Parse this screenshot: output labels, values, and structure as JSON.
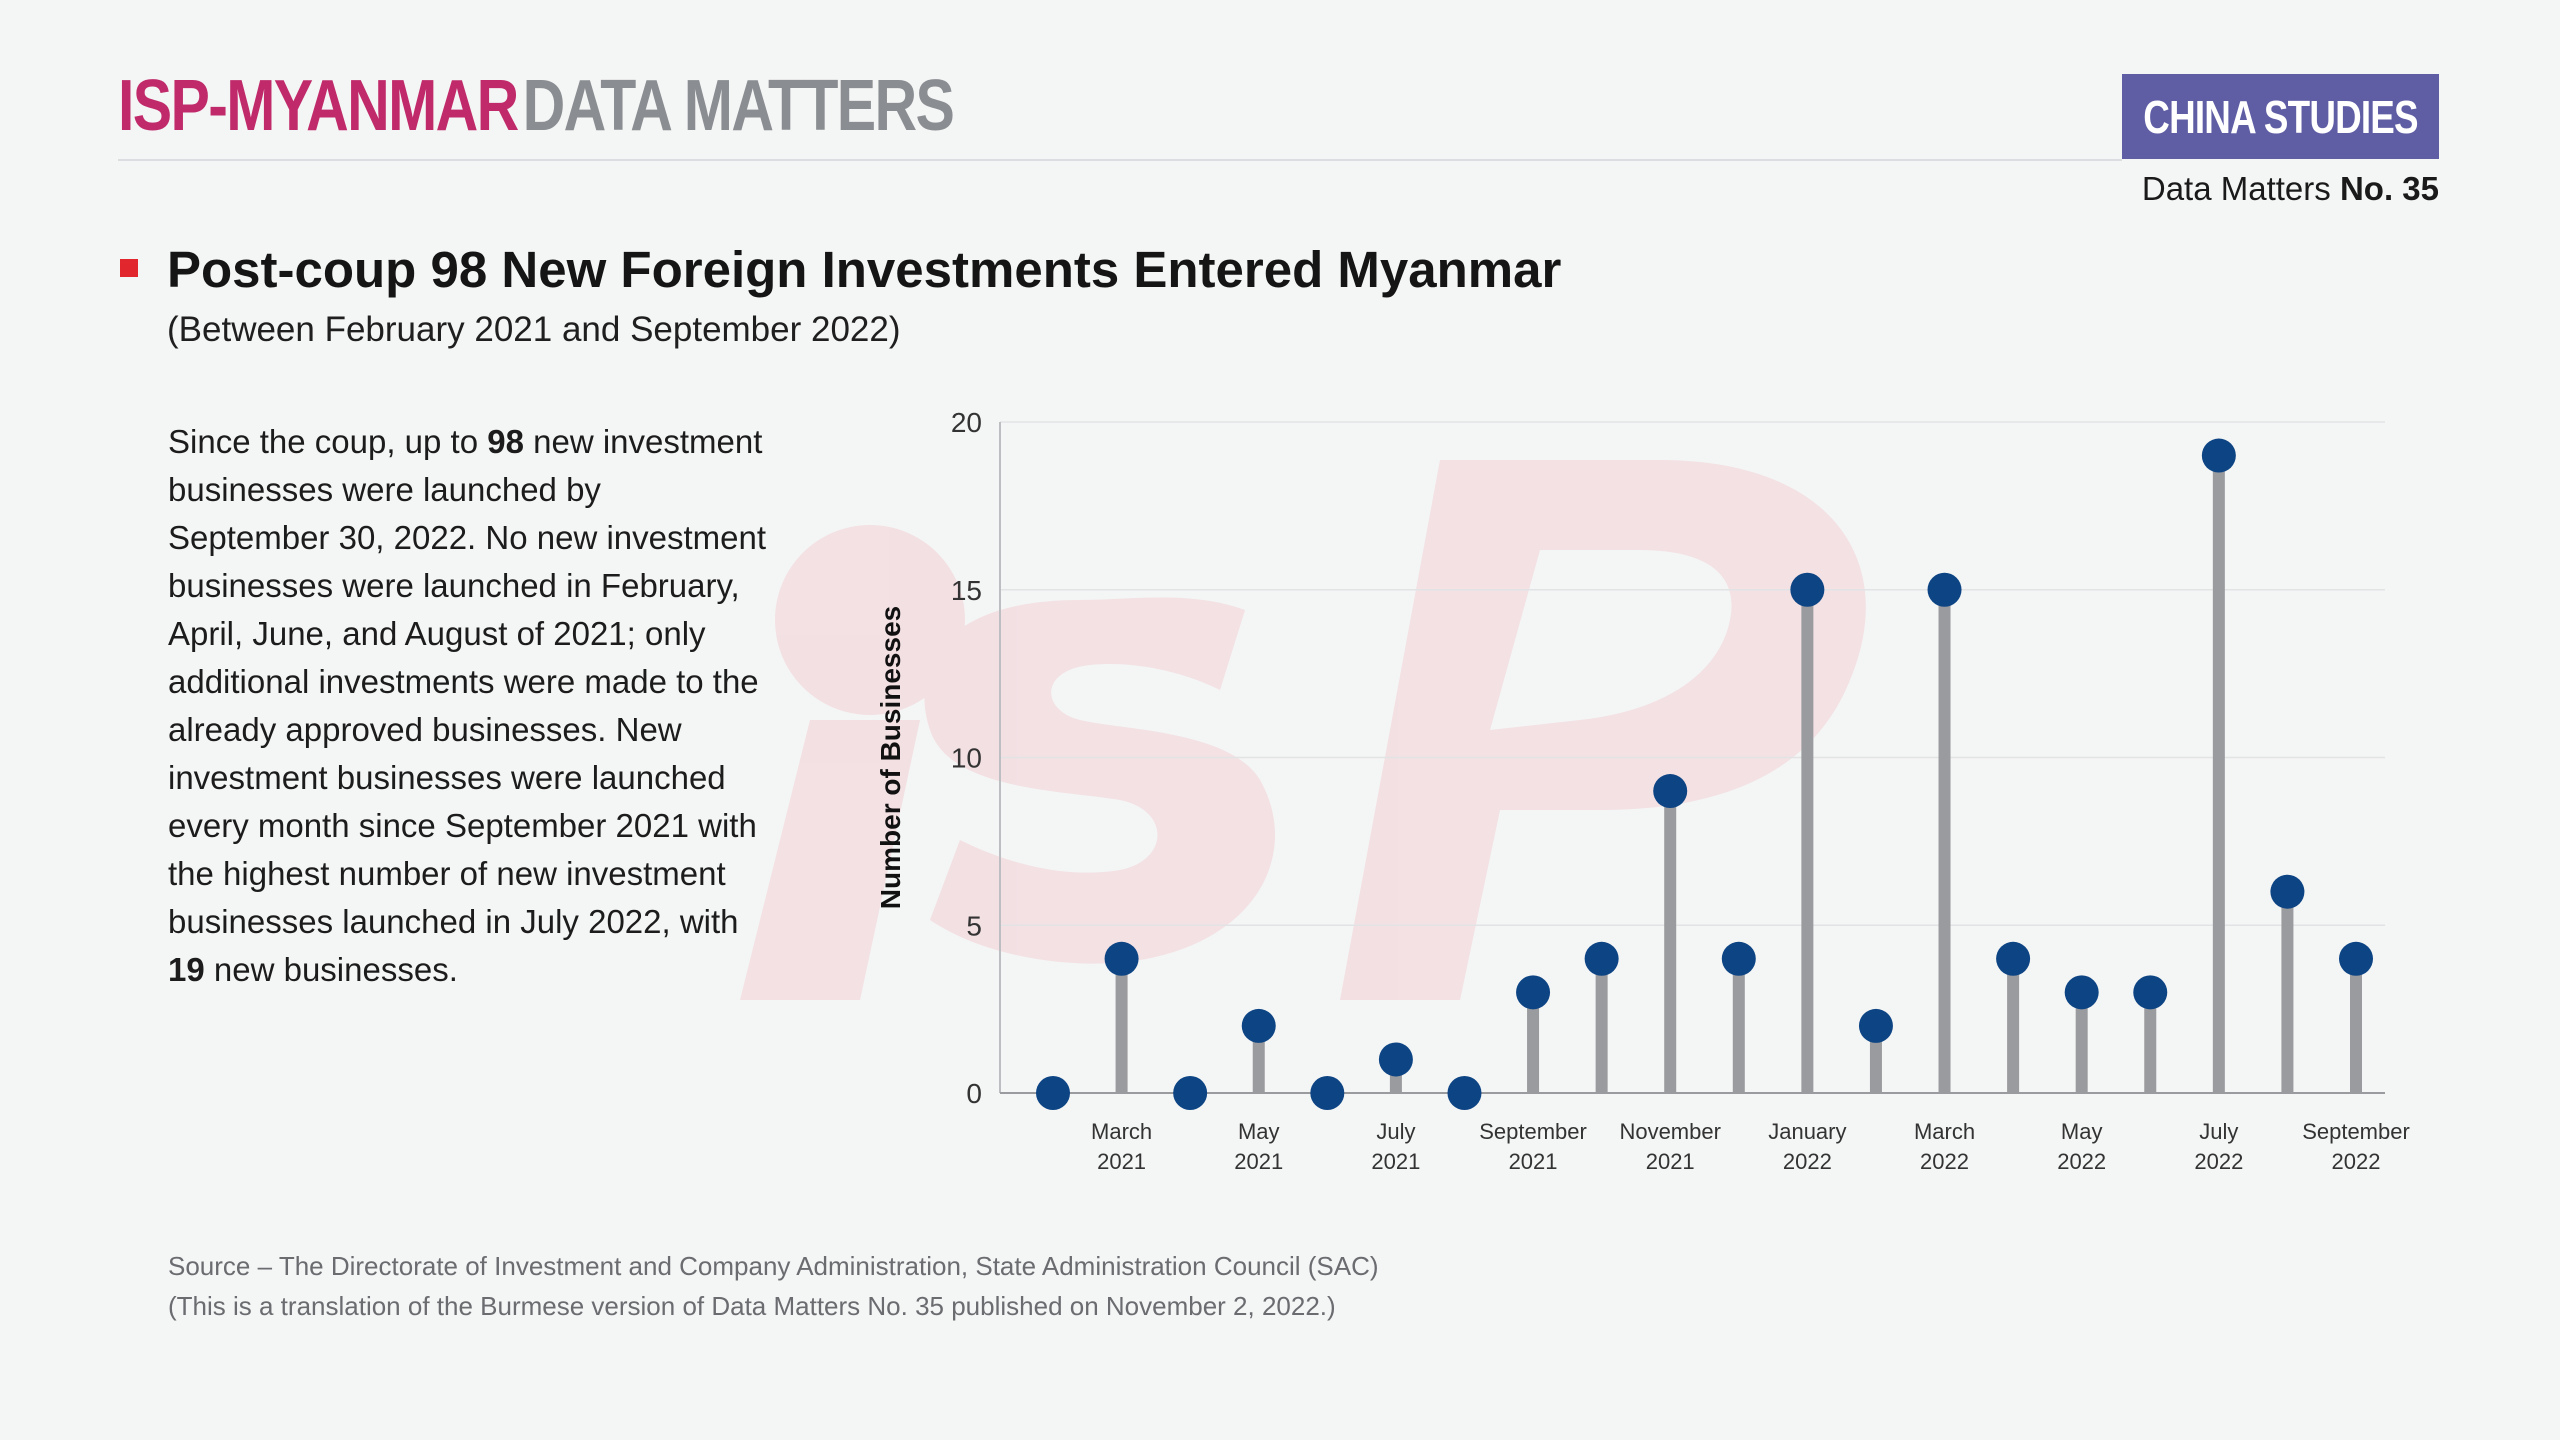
{
  "header": {
    "brand_primary": "ISP-MYANMAR",
    "brand_secondary": "DATA MATTERS",
    "badge": "CHINA STUDIES",
    "issue_prefix": "Data Matters",
    "issue_number": "No. 35"
  },
  "title": "Post-coup 98 New Foreign Investments Entered Myanmar",
  "subtitle": "(Between February 2021 and September 2022)",
  "description": {
    "p1": "Since the coup, up to ",
    "b1": "98",
    "p2": " new investment businesses were launched by September 30, 2022. No new investment businesses were launched in February, April, June, and August of 2021; only additional investments were made to the already approved businesses. New investment businesses were launched every month since September 2021 with the highest number of new investment businesses launched in July 2022, with ",
    "b2": "19",
    "p3": " new businesses."
  },
  "source": {
    "line1": "Source   –   The Directorate of Investment and Company Administration, State Administration Council (SAC)",
    "line2": "(This is a translation of the Burmese version of Data Matters No. 35 published on November 2, 2022.)"
  },
  "colors": {
    "accent": "#c02a6a",
    "badge": "#5f5ea5",
    "dot": "#0d4484",
    "stem": "#9a9b9e",
    "title_square": "#e1262d"
  },
  "chart_data": {
    "type": "lollipop",
    "title": "",
    "xlabel": "",
    "ylabel": "Number of Businesses",
    "ylim": [
      0,
      20
    ],
    "yticks": [
      0,
      5,
      10,
      15,
      20
    ],
    "grid": true,
    "categories": [
      "February 2021",
      "March 2021",
      "April 2021",
      "May 2021",
      "June 2021",
      "July 2021",
      "August 2021",
      "September 2021",
      "October 2021",
      "November 2021",
      "December 2021",
      "January 2022",
      "February 2022",
      "March 2022",
      "April 2022",
      "May 2022",
      "June 2022",
      "July 2022",
      "August 2022",
      "September 2022"
    ],
    "values": [
      0,
      4,
      0,
      2,
      0,
      1,
      0,
      3,
      4,
      9,
      4,
      15,
      2,
      15,
      4,
      3,
      3,
      19,
      6,
      4
    ],
    "tick_labels": [
      {
        "index": 1,
        "line1": "March",
        "line2": "2021"
      },
      {
        "index": 3,
        "line1": "May",
        "line2": "2021"
      },
      {
        "index": 5,
        "line1": "July",
        "line2": "2021"
      },
      {
        "index": 7,
        "line1": "September",
        "line2": "2021"
      },
      {
        "index": 9,
        "line1": "November",
        "line2": "2021"
      },
      {
        "index": 11,
        "line1": "January",
        "line2": "2022"
      },
      {
        "index": 13,
        "line1": "March",
        "line2": "2022"
      },
      {
        "index": 15,
        "line1": "May",
        "line2": "2022"
      },
      {
        "index": 17,
        "line1": "July",
        "line2": "2022"
      },
      {
        "index": 19,
        "line1": "September",
        "line2": "2022"
      }
    ]
  }
}
